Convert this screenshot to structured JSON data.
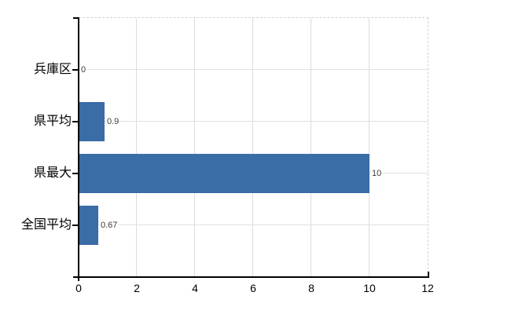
{
  "chart_data": {
    "type": "bar",
    "orientation": "horizontal",
    "title": "",
    "xlabel": "",
    "ylabel": "",
    "categories": [
      "兵庫区",
      "県平均",
      "県最大",
      "全国平均"
    ],
    "values": [
      0,
      0.9,
      10,
      0.67
    ],
    "value_labels": [
      "0",
      "0.9",
      "10",
      "0.67"
    ],
    "x_ticks": [
      0,
      2,
      4,
      6,
      8,
      10,
      12
    ],
    "x_tick_labels": [
      "0",
      "2",
      "4",
      "6",
      "8",
      "10",
      "12"
    ],
    "xlim": [
      0,
      12
    ],
    "grid": true,
    "legend": false,
    "plot_border": "dashed-top-right",
    "colors": {
      "bar": "#3a6ca6",
      "axis": "#000000",
      "vertical_gridline": "#dcdcdc",
      "category_gridline": "#dde3dd",
      "dashed_border": "#d8d2d8",
      "value_label_text": "#3b3b3b",
      "tick_label_text": "#000000",
      "background": "#ffffff"
    }
  }
}
